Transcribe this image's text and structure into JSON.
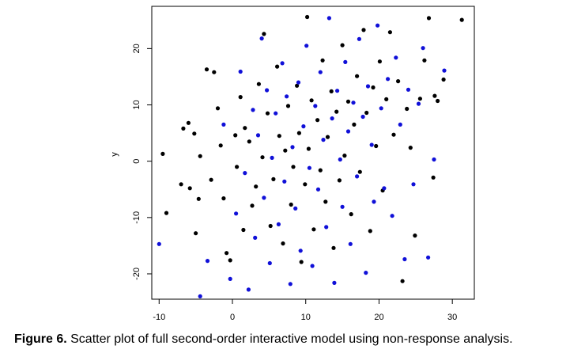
{
  "chart_data": {
    "type": "scatter",
    "title": "",
    "xlabel": "",
    "ylabel": "y",
    "xlim": [
      -11,
      33
    ],
    "ylim": [
      -24.5,
      27.5
    ],
    "x_ticks": [
      -10,
      0,
      10,
      20,
      30
    ],
    "y_ticks": [
      -20,
      -10,
      0,
      10,
      20
    ],
    "x_tick_labels": [
      "-10",
      "0",
      "10",
      "20",
      "30"
    ],
    "y_tick_labels": [
      "-20",
      "-10",
      "0",
      "10",
      "20"
    ],
    "grid": false,
    "legend": "none",
    "series": [
      {
        "color": "#000000",
        "values": [
          [
            -9.5,
            1.3
          ],
          [
            -9.0,
            -9.2
          ],
          [
            -7.0,
            -4.1
          ],
          [
            -6.7,
            5.8
          ],
          [
            -6.0,
            6.8
          ],
          [
            -5.8,
            -4.8
          ],
          [
            -5.2,
            4.9
          ],
          [
            -5.0,
            -12.8
          ],
          [
            -4.6,
            -6.7
          ],
          [
            -4.4,
            0.9
          ],
          [
            -3.5,
            16.3
          ],
          [
            -2.9,
            -3.3
          ],
          [
            -2.5,
            15.8
          ],
          [
            -2.0,
            9.4
          ],
          [
            -1.6,
            2.8
          ],
          [
            -1.2,
            -6.6
          ],
          [
            -0.8,
            -16.3
          ],
          [
            -0.3,
            -17.6
          ],
          [
            0.4,
            4.6
          ],
          [
            0.6,
            -1.0
          ],
          [
            1.1,
            11.4
          ],
          [
            1.5,
            -12.2
          ],
          [
            1.7,
            5.9
          ],
          [
            2.3,
            3.5
          ],
          [
            2.7,
            -7.9
          ],
          [
            3.2,
            -4.5
          ],
          [
            3.6,
            13.7
          ],
          [
            4.1,
            0.7
          ],
          [
            4.3,
            22.6
          ],
          [
            4.8,
            8.5
          ],
          [
            5.2,
            -11.5
          ],
          [
            5.6,
            -3.2
          ],
          [
            6.1,
            16.8
          ],
          [
            6.4,
            4.5
          ],
          [
            6.9,
            -14.6
          ],
          [
            7.2,
            1.9
          ],
          [
            7.6,
            9.8
          ],
          [
            8.0,
            -7.7
          ],
          [
            8.3,
            -1.0
          ],
          [
            8.8,
            13.4
          ],
          [
            9.1,
            5.0
          ],
          [
            9.4,
            -17.9
          ],
          [
            9.9,
            -4.1
          ],
          [
            10.2,
            25.6
          ],
          [
            10.4,
            2.2
          ],
          [
            10.8,
            10.8
          ],
          [
            11.1,
            -12.1
          ],
          [
            11.6,
            7.3
          ],
          [
            12.0,
            -1.6
          ],
          [
            12.3,
            17.9
          ],
          [
            12.7,
            -7.2
          ],
          [
            13.0,
            4.3
          ],
          [
            13.5,
            12.4
          ],
          [
            13.8,
            -15.4
          ],
          [
            14.2,
            8.8
          ],
          [
            14.6,
            -3.4
          ],
          [
            15.0,
            20.6
          ],
          [
            15.3,
            1.0
          ],
          [
            15.8,
            10.6
          ],
          [
            16.2,
            -9.4
          ],
          [
            16.6,
            6.5
          ],
          [
            17.0,
            15.1
          ],
          [
            17.4,
            -1.9
          ],
          [
            17.9,
            23.3
          ],
          [
            18.3,
            8.6
          ],
          [
            18.8,
            -12.4
          ],
          [
            19.2,
            13.1
          ],
          [
            19.6,
            2.7
          ],
          [
            20.1,
            17.7
          ],
          [
            20.5,
            -5.2
          ],
          [
            21.0,
            11.0
          ],
          [
            21.5,
            22.9
          ],
          [
            22.0,
            4.7
          ],
          [
            22.6,
            14.2
          ],
          [
            23.2,
            -21.3
          ],
          [
            23.8,
            9.3
          ],
          [
            24.3,
            2.4
          ],
          [
            24.9,
            -13.2
          ],
          [
            25.6,
            11.1
          ],
          [
            26.2,
            17.9
          ],
          [
            26.8,
            25.4
          ],
          [
            27.4,
            -2.9
          ],
          [
            27.6,
            11.6
          ],
          [
            28.0,
            10.7
          ],
          [
            28.8,
            14.5
          ],
          [
            31.3,
            25.1
          ]
        ]
      },
      {
        "color": "#1010d8",
        "values": [
          [
            -10.0,
            -14.7
          ],
          [
            -4.4,
            -24.0
          ],
          [
            -3.4,
            -17.7
          ],
          [
            -1.2,
            6.5
          ],
          [
            -0.3,
            -20.9
          ],
          [
            0.5,
            -9.3
          ],
          [
            1.1,
            15.9
          ],
          [
            1.7,
            -2.1
          ],
          [
            2.2,
            -22.8
          ],
          [
            2.8,
            9.1
          ],
          [
            3.1,
            -13.6
          ],
          [
            3.5,
            4.6
          ],
          [
            4.0,
            21.8
          ],
          [
            4.3,
            -6.5
          ],
          [
            4.7,
            12.6
          ],
          [
            5.1,
            -18.1
          ],
          [
            5.4,
            0.6
          ],
          [
            5.9,
            8.5
          ],
          [
            6.3,
            -11.2
          ],
          [
            6.8,
            17.4
          ],
          [
            7.1,
            -3.6
          ],
          [
            7.4,
            11.5
          ],
          [
            7.9,
            -21.8
          ],
          [
            8.2,
            2.5
          ],
          [
            8.6,
            -8.4
          ],
          [
            9.0,
            14.0
          ],
          [
            9.3,
            -15.9
          ],
          [
            9.7,
            6.2
          ],
          [
            10.1,
            20.5
          ],
          [
            10.5,
            -1.2
          ],
          [
            10.9,
            -18.6
          ],
          [
            11.3,
            9.8
          ],
          [
            11.7,
            -5.0
          ],
          [
            12.0,
            15.8
          ],
          [
            12.4,
            3.8
          ],
          [
            12.8,
            -11.7
          ],
          [
            13.2,
            25.4
          ],
          [
            13.6,
            7.6
          ],
          [
            13.9,
            -21.6
          ],
          [
            14.3,
            12.5
          ],
          [
            14.7,
            0.3
          ],
          [
            15.0,
            -8.1
          ],
          [
            15.4,
            17.6
          ],
          [
            15.8,
            5.3
          ],
          [
            16.1,
            -14.7
          ],
          [
            16.5,
            10.4
          ],
          [
            17.0,
            -2.7
          ],
          [
            17.3,
            21.7
          ],
          [
            17.8,
            7.9
          ],
          [
            18.2,
            -19.8
          ],
          [
            18.5,
            13.3
          ],
          [
            19.0,
            2.9
          ],
          [
            19.3,
            -7.2
          ],
          [
            19.8,
            24.1
          ],
          [
            20.3,
            9.4
          ],
          [
            20.7,
            -4.8
          ],
          [
            21.2,
            14.6
          ],
          [
            21.8,
            -9.7
          ],
          [
            22.3,
            18.4
          ],
          [
            22.9,
            6.5
          ],
          [
            23.5,
            -17.4
          ],
          [
            24.0,
            12.7
          ],
          [
            24.7,
            -4.1
          ],
          [
            25.4,
            10.2
          ],
          [
            26.0,
            20.1
          ],
          [
            26.7,
            -17.1
          ],
          [
            27.5,
            0.3
          ],
          [
            28.9,
            16.1
          ]
        ]
      }
    ]
  },
  "caption": {
    "label": "Figure 6.",
    "text": " Scatter plot of full second-order interactive model using non-response analysis."
  }
}
